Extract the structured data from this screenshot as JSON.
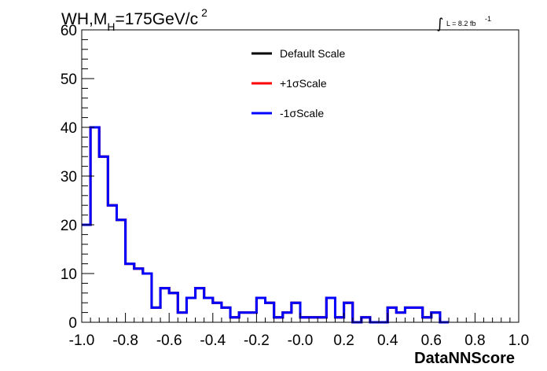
{
  "chart_data": {
    "type": "histogram",
    "title": {
      "main": "WH,M",
      "sub": "H",
      "rest": "=175GeV/c",
      "sup": "2"
    },
    "annotation": {
      "integral": "∫",
      "text": "L = 8.2 fb",
      "sup": "-1"
    },
    "xlabel": "DataNNScore",
    "ylabel": "",
    "xlim": [
      -1.0,
      1.0
    ],
    "ylim": [
      0,
      60
    ],
    "x_ticks": [
      -1.0,
      -0.8,
      -0.6,
      -0.4,
      -0.2,
      0.0,
      0.2,
      0.4,
      0.6,
      0.8,
      1.0
    ],
    "x_tick_labels": [
      "-1.0",
      "-0.8",
      "-0.6",
      "-0.4",
      "-0.2",
      "-0.0",
      "0.2",
      "0.4",
      "0.6",
      "0.8",
      "1.0"
    ],
    "y_ticks": [
      0,
      10,
      20,
      30,
      40,
      50,
      60
    ],
    "y_tick_labels": [
      "0",
      "10",
      "20",
      "30",
      "40",
      "50",
      "60"
    ],
    "bin_edges_start": -1.0,
    "bin_width": 0.04,
    "series": [
      {
        "name": "Default Scale",
        "color": "#000000",
        "values": [
          20,
          40,
          34,
          24,
          21,
          12,
          11,
          10,
          3,
          7,
          6,
          2,
          5,
          7,
          5,
          4,
          3,
          1,
          2,
          2,
          5,
          4,
          1,
          2,
          4,
          1,
          1,
          1,
          5,
          1,
          4,
          0,
          1,
          0,
          0,
          3,
          2,
          3,
          3,
          1,
          2,
          0
        ]
      },
      {
        "name": "+1σScale",
        "color": "#ff0000",
        "values": [
          20,
          40,
          34,
          24,
          21,
          12,
          11,
          10,
          3,
          7,
          6,
          2,
          5,
          7,
          5,
          4,
          3,
          1,
          2,
          2,
          5,
          4,
          1,
          2,
          4,
          1,
          1,
          1,
          5,
          1,
          4,
          0,
          1,
          0,
          0,
          3,
          2,
          3,
          3,
          1,
          2,
          0
        ]
      },
      {
        "name": "-1σScale",
        "color": "#0000ff",
        "values": [
          20,
          40,
          34,
          24,
          21,
          12,
          11,
          10,
          3,
          7,
          6,
          2,
          5,
          7,
          5,
          4,
          3,
          1,
          2,
          2,
          5,
          4,
          1,
          2,
          4,
          1,
          1,
          1,
          5,
          1,
          4,
          0,
          1,
          0,
          0,
          3,
          2,
          3,
          3,
          1,
          2,
          0
        ]
      }
    ],
    "legend": {
      "position": "top-center",
      "entries": [
        "Default Scale",
        "+1σScale",
        "-1σScale"
      ]
    },
    "grid": false
  }
}
